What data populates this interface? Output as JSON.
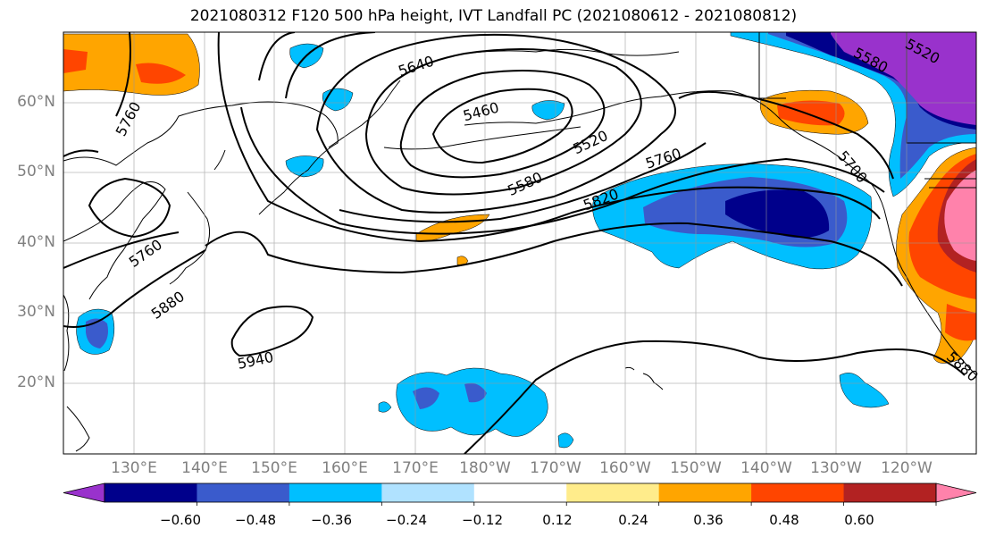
{
  "title": "2021080312 F120 500 hPa height, IVT Landfall PC (2021080612 - 2021080812)",
  "latitude_labels": [
    "60°N",
    "50°N",
    "40°N",
    "30°N",
    "20°N"
  ],
  "longitude_labels": [
    "130°E",
    "140°E",
    "150°E",
    "160°E",
    "170°E",
    "180°W",
    "170°W",
    "160°W",
    "150°W",
    "140°W",
    "130°W",
    "120°W"
  ],
  "contour_labels": [
    "5640",
    "5460",
    "5520",
    "5580",
    "5760",
    "5820",
    "5760",
    "5760",
    "5880",
    "5940",
    "5520",
    "5580",
    "5700",
    "5880"
  ],
  "colorbar": {
    "ticks": [
      "−0.60",
      "−0.48",
      "−0.36",
      "−0.24",
      "−0.12",
      "0.12",
      "0.24",
      "0.36",
      "0.48",
      "0.60"
    ],
    "colors": [
      "#9932CC",
      "#00008B",
      "#3A5BCC",
      "#00BFFF",
      "#B0E2FF",
      "#FFFFFF",
      "#FFEC8B",
      "#FFA500",
      "#FF4500",
      "#B22222",
      "#FF82AB"
    ]
  }
}
